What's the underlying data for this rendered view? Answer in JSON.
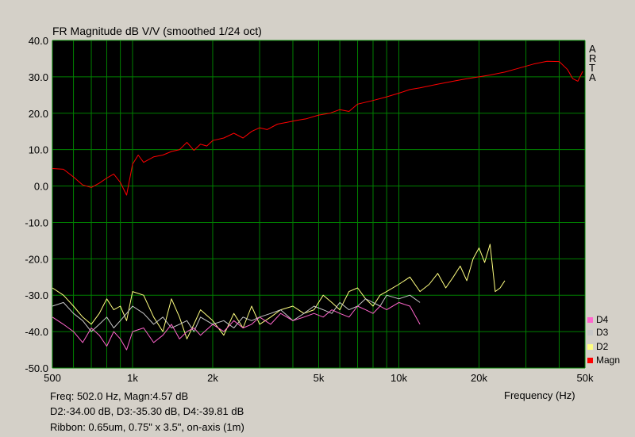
{
  "chart_data": {
    "type": "line",
    "title": "FR Magnitude dB V/V (smoothed 1/24 oct)",
    "xlabel": "Frequency (Hz)",
    "ylabel": "",
    "xscale": "log",
    "xlim": [
      500,
      50000
    ],
    "ylim": [
      -50,
      40
    ],
    "x_ticks": [
      {
        "value": 500,
        "label": "500"
      },
      {
        "value": 1000,
        "label": "1k"
      },
      {
        "value": 2000,
        "label": "2k"
      },
      {
        "value": 5000,
        "label": "5k"
      },
      {
        "value": 10000,
        "label": "10k"
      },
      {
        "value": 20000,
        "label": "20k"
      },
      {
        "value": 50000,
        "label": "50k"
      }
    ],
    "y_ticks": [
      {
        "value": 40,
        "label": "40.0"
      },
      {
        "value": 30,
        "label": "30.0"
      },
      {
        "value": 20,
        "label": "20.0"
      },
      {
        "value": 10,
        "label": "10.0"
      },
      {
        "value": 0,
        "label": "0.0"
      },
      {
        "value": -10,
        "label": "-10.0"
      },
      {
        "value": -20,
        "label": "-20.0"
      },
      {
        "value": -30,
        "label": "-30.0"
      },
      {
        "value": -40,
        "label": "-40.0"
      },
      {
        "value": -50,
        "label": "-50.0"
      }
    ],
    "grid": true,
    "legend_position": "bottom-right",
    "series": [
      {
        "name": "Magn",
        "color": "#ff0000",
        "x": [
          500,
          550,
          600,
          650,
          700,
          750,
          800,
          850,
          900,
          950,
          1000,
          1050,
          1100,
          1200,
          1300,
          1400,
          1500,
          1600,
          1700,
          1800,
          1900,
          2000,
          2200,
          2400,
          2600,
          2800,
          3000,
          3200,
          3500,
          3800,
          4100,
          4500,
          5000,
          5500,
          6000,
          6500,
          7000,
          8000,
          9000,
          10000,
          11000,
          12000,
          14000,
          16000,
          18000,
          20000,
          22000,
          25000,
          28000,
          32000,
          36000,
          40000,
          43000,
          45000,
          47000,
          49000
        ],
        "y": [
          4.8,
          4.6,
          2.5,
          0.3,
          -0.4,
          0.8,
          2.2,
          3.3,
          1.0,
          -2.5,
          6.0,
          8.5,
          6.5,
          8.0,
          8.5,
          9.5,
          10.0,
          12.0,
          9.8,
          11.5,
          11.0,
          12.5,
          13.2,
          14.5,
          13.2,
          15.0,
          16.0,
          15.5,
          17.0,
          17.5,
          18.0,
          18.5,
          19.5,
          20.0,
          21.0,
          20.5,
          22.5,
          23.5,
          24.5,
          25.5,
          26.5,
          27.0,
          28.0,
          28.8,
          29.5,
          30.0,
          30.5,
          31.3,
          32.3,
          33.5,
          34.3,
          34.2,
          32.0,
          29.5,
          28.8,
          31.5
        ]
      },
      {
        "name": "D2",
        "color": "#ffff80",
        "x": [
          500,
          550,
          600,
          650,
          700,
          750,
          800,
          850,
          900,
          950,
          1000,
          1100,
          1200,
          1300,
          1400,
          1500,
          1600,
          1700,
          1800,
          2000,
          2200,
          2400,
          2600,
          2800,
          3000,
          3300,
          3600,
          4000,
          4400,
          4800,
          5200,
          5600,
          6000,
          6500,
          7000,
          7500,
          8000,
          8500,
          9000,
          10000,
          11000,
          12000,
          13000,
          14000,
          15000,
          16000,
          17000,
          18000,
          19000,
          20000,
          21000,
          22000,
          23000,
          24000,
          25000
        ],
        "y": [
          -28,
          -30,
          -33,
          -36,
          -38,
          -35,
          -31,
          -34,
          -33,
          -37,
          -29,
          -30,
          -36,
          -40,
          -31,
          -36,
          -42,
          -38,
          -34,
          -37,
          -41,
          -35,
          -39,
          -33,
          -38,
          -36,
          -34,
          -33,
          -35,
          -34,
          -30,
          -32,
          -34,
          -29,
          -28,
          -31,
          -33,
          -30,
          -29,
          -27,
          -25,
          -29,
          -27,
          -24,
          -28,
          -25,
          -22,
          -26,
          -20,
          -17,
          -21,
          -16,
          -29,
          -28,
          -26
        ]
      },
      {
        "name": "D3",
        "color": "#c8c8c8",
        "x": [
          500,
          550,
          600,
          650,
          700,
          750,
          800,
          850,
          900,
          950,
          1000,
          1100,
          1200,
          1300,
          1400,
          1500,
          1600,
          1700,
          1800,
          2000,
          2200,
          2400,
          2600,
          2800,
          3000,
          3300,
          3600,
          4000,
          4400,
          4800,
          5200,
          5600,
          6000,
          6500,
          7000,
          7500,
          8000,
          8500,
          9000,
          10000,
          11000,
          12000
        ],
        "y": [
          -33,
          -32,
          -35,
          -37,
          -40,
          -38,
          -36,
          -39,
          -37,
          -35,
          -33,
          -35,
          -38,
          -36,
          -39,
          -38,
          -37,
          -40,
          -36,
          -38,
          -37,
          -39,
          -36,
          -37,
          -36,
          -35,
          -34,
          -37,
          -35,
          -33,
          -34,
          -35,
          -32,
          -34,
          -33,
          -31,
          -32,
          -33,
          -30,
          -31,
          -30,
          -32
        ]
      },
      {
        "name": "D4",
        "color": "#ff66cc",
        "x": [
          500,
          550,
          600,
          650,
          700,
          750,
          800,
          850,
          900,
          950,
          1000,
          1100,
          1200,
          1300,
          1400,
          1500,
          1600,
          1700,
          1800,
          2000,
          2200,
          2400,
          2600,
          2800,
          3000,
          3300,
          3600,
          4000,
          4400,
          4800,
          5200,
          5600,
          6000,
          6500,
          7000,
          7500,
          8000,
          8500,
          9000,
          10000,
          11000,
          12000
        ],
        "y": [
          -36,
          -38,
          -40,
          -43,
          -39,
          -41,
          -44,
          -40,
          -42,
          -45,
          -40,
          -39,
          -43,
          -41,
          -38,
          -42,
          -40,
          -39,
          -41,
          -38,
          -40,
          -37,
          -39,
          -38,
          -36,
          -38,
          -35,
          -37,
          -36,
          -35,
          -36,
          -34,
          -35,
          -36,
          -33,
          -34,
          -35,
          -33,
          -34,
          -32,
          -33,
          -38
        ]
      }
    ]
  },
  "header": {
    "arta_letters": [
      "A",
      "R",
      "T",
      "A"
    ]
  },
  "legend": {
    "items": [
      {
        "label": "D4",
        "color": "#ff66cc"
      },
      {
        "label": "D3",
        "color": "#c8c8c8"
      },
      {
        "label": "D2",
        "color": "#ffff80"
      },
      {
        "label": "Magn",
        "color": "#ff0000"
      }
    ]
  },
  "info": {
    "line1": "Freq: 502.0 Hz, Magn:4.57 dB",
    "line2": "D2:-34.00 dB, D3:-35.30 dB, D4:-39.81 dB",
    "line3": "Ribbon: 0.65um, 0.75\" x 3.5\", on-axis (1m)"
  },
  "colors": {
    "plot_bg": "#000000",
    "grid": "#008000",
    "window_bg": "#d4d0c8"
  }
}
